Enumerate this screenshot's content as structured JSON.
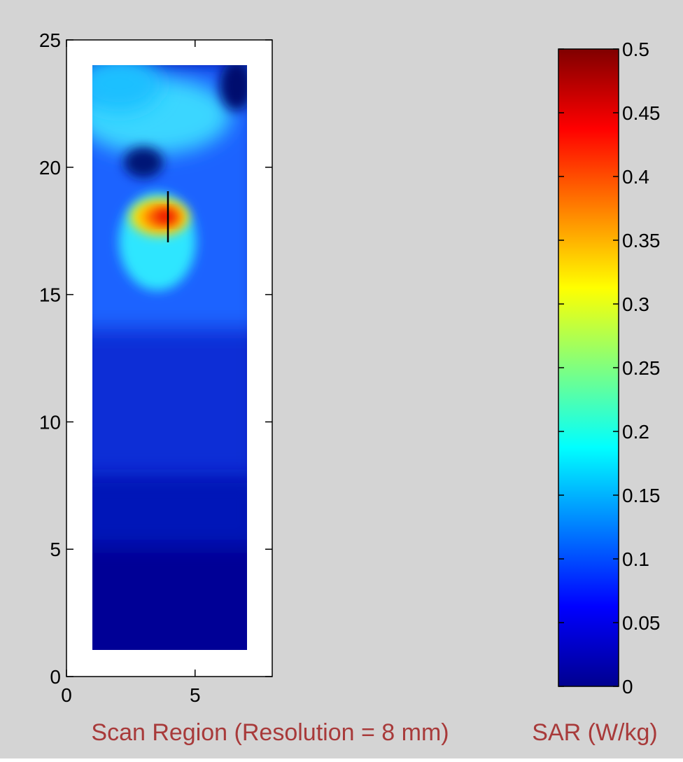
{
  "chart_data": [
    {
      "type": "heatmap",
      "title": "",
      "xlabel": "Scan Region (Resolution = 8 mm)",
      "ylabel": "",
      "xlim": [
        0,
        8
      ],
      "ylim": [
        0,
        25
      ],
      "x_ticks": [
        "0",
        "5"
      ],
      "y_ticks": [
        "0",
        "5",
        "10",
        "15",
        "20",
        "25"
      ],
      "x_tick_values": [
        0,
        5
      ],
      "y_tick_values": [
        0,
        5,
        10,
        15,
        20,
        25
      ],
      "data_extent": {
        "x": [
          1,
          7
        ],
        "y": [
          1,
          24
        ]
      },
      "colormap": "jet",
      "value_units": "W/kg",
      "peak": {
        "x": 4,
        "y": 18,
        "value": 0.45
      },
      "grid": false,
      "background": "#ffffff",
      "marker_color": "#000000"
    },
    {
      "type": "colorbar",
      "label": "SAR (W/kg)",
      "range": [
        0,
        0.5
      ],
      "ticks": [
        "0",
        "0.05",
        "0.1",
        "0.15",
        "0.2",
        "0.25",
        "0.3",
        "0.35",
        "0.4",
        "0.45",
        "0.5"
      ],
      "tick_values": [
        0,
        0.05,
        0.1,
        0.15,
        0.2,
        0.25,
        0.3,
        0.35,
        0.4,
        0.45,
        0.5
      ],
      "colormap": "jet"
    }
  ],
  "colors": {
    "figure_background": "#d4d4d4",
    "label_color": "#a83a3a",
    "axes_color": "#000000"
  }
}
